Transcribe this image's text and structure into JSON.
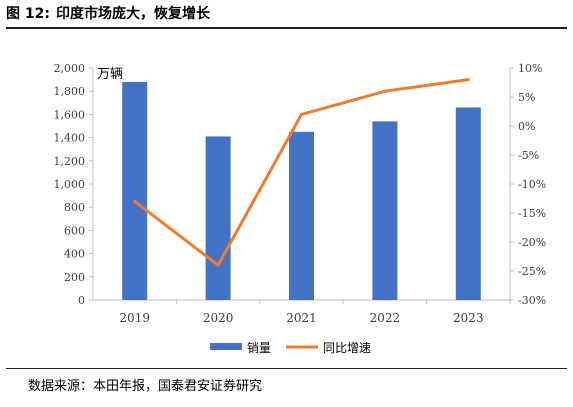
{
  "figure": {
    "label": "图 12:",
    "title": "印度市场庞大，恢复增长",
    "source": "数据来源：本田年报，国泰君安证券研究"
  },
  "colors": {
    "bar": "#4472C4",
    "line": "#ED7D31",
    "axis": "#bfbfbf",
    "text": "#404040"
  },
  "chart_data": {
    "type": "bar",
    "categories": [
      "2019",
      "2020",
      "2021",
      "2022",
      "2023"
    ],
    "series": [
      {
        "name": "销量",
        "type": "bar",
        "axis": "left",
        "values": [
          1880,
          1410,
          1450,
          1540,
          1660
        ]
      },
      {
        "name": "同比增速",
        "type": "line",
        "axis": "right",
        "values": [
          -13,
          -24,
          2,
          6,
          8
        ]
      }
    ],
    "y_left": {
      "unit_label": "万辆",
      "ylim": [
        0,
        2000
      ],
      "ticks": [
        "2,000",
        "1,800",
        "1,600",
        "1,400",
        "1,200",
        "1,000",
        "800",
        "600",
        "400",
        "200",
        "0"
      ]
    },
    "y_right": {
      "ylim": [
        -30,
        10
      ],
      "ticks": [
        "10%",
        "5%",
        "0%",
        "-5%",
        "-10%",
        "-15%",
        "-20%",
        "-25%",
        "-30%"
      ]
    },
    "grid": false,
    "legend": "bottom"
  }
}
